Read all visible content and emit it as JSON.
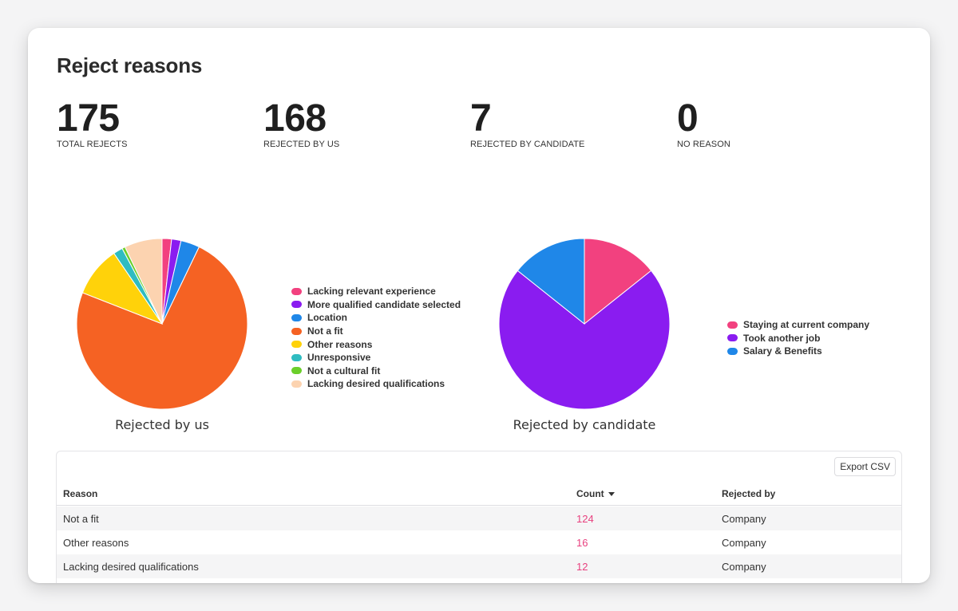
{
  "page": {
    "title": "Reject reasons"
  },
  "stats": [
    {
      "value": "175",
      "label": "TOTAL REJECTS"
    },
    {
      "value": "168",
      "label": "REJECTED BY US"
    },
    {
      "value": "7",
      "label": "REJECTED BY CANDIDATE"
    },
    {
      "value": "0",
      "label": "NO REASON"
    }
  ],
  "chart_data": [
    {
      "type": "pie",
      "title": "Rejected by us",
      "categories": [
        "Lacking relevant experience",
        "More qualified candidate selected",
        "Location",
        "Not a fit",
        "Other reasons",
        "Unresponsive",
        "Not a cultural fit",
        "Lacking desired qualifications"
      ],
      "values": [
        3,
        3,
        6,
        124,
        16,
        3,
        1,
        12
      ],
      "colors": [
        "#f2417f",
        "#8a1cf0",
        "#1f87e8",
        "#f56223",
        "#ffd20a",
        "#2fbcc1",
        "#6bcf2a",
        "#fcd3b0"
      ],
      "legend": "right"
    },
    {
      "type": "pie",
      "title": "Rejected by candidate",
      "categories": [
        "Staying at current company",
        "Took another job",
        "Salary & Benefits"
      ],
      "values": [
        1,
        5,
        1
      ],
      "colors": [
        "#f2417f",
        "#8a1cf0",
        "#1f87e8"
      ],
      "legend": "right"
    }
  ],
  "table": {
    "export_label": "Export CSV",
    "headers": {
      "reason": "Reason",
      "count": "Count",
      "rejected_by": "Rejected by"
    },
    "sort_icon": "caret-down-icon",
    "rows": [
      {
        "reason": "Not a fit",
        "count": "124",
        "rejected_by": "Company"
      },
      {
        "reason": "Other reasons",
        "count": "16",
        "rejected_by": "Company"
      },
      {
        "reason": "Lacking desired qualifications",
        "count": "12",
        "rejected_by": "Company"
      }
    ],
    "count_color": "#e8417f"
  }
}
